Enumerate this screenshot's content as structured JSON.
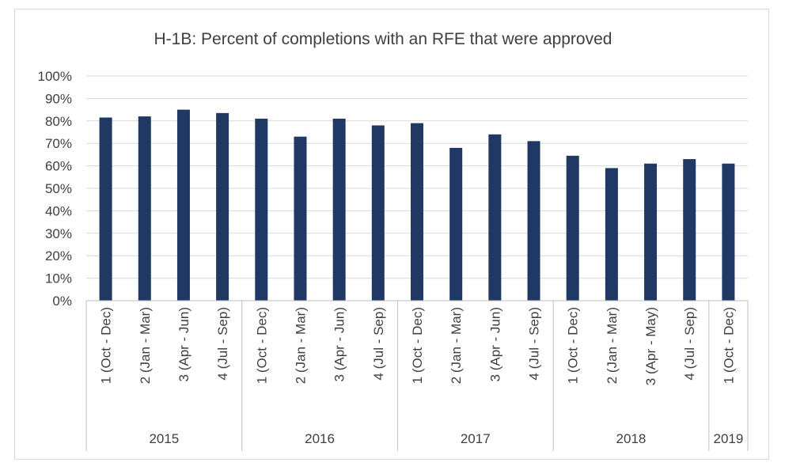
{
  "chart_data": {
    "type": "bar",
    "title": "H-1B: Percent of completions with an RFE that were approved",
    "xlabel": "",
    "ylabel": "",
    "ylim": [
      0,
      100
    ],
    "y_ticks": [
      "0%",
      "10%",
      "20%",
      "30%",
      "40%",
      "50%",
      "60%",
      "70%",
      "80%",
      "90%",
      "100%"
    ],
    "grid": true,
    "legend": "none",
    "bar_color": "#1f3864",
    "categories": [
      "1 (Oct - Dec)",
      "2 (Jan - Mar)",
      "3 (Apr - Jun)",
      "4 (Jul - Sep)",
      "1 (Oct - Dec)",
      "2 (Jan - Mar)",
      "3 (Apr - Jun)",
      "4 (Jul - Sep)",
      "1 (Oct - Dec)",
      "2 (Jan - Mar)",
      "3 (Apr - Jun)",
      "4 (Jul - Sep)",
      "1 (Oct - Dec)",
      "2 (Jan - Mar)",
      "3 (Apr - May)",
      "4 (Jul - Sep)",
      "1 (Oct - Dec)"
    ],
    "groups": [
      {
        "label": "2015",
        "count": 4
      },
      {
        "label": "2016",
        "count": 4
      },
      {
        "label": "2017",
        "count": 4
      },
      {
        "label": "2018",
        "count": 4
      },
      {
        "label": "2019",
        "count": 1
      }
    ],
    "values": [
      81.5,
      82,
      85,
      83.5,
      81,
      73,
      81,
      78,
      79,
      68,
      74,
      71,
      64.5,
      59,
      61,
      63,
      61
    ]
  }
}
